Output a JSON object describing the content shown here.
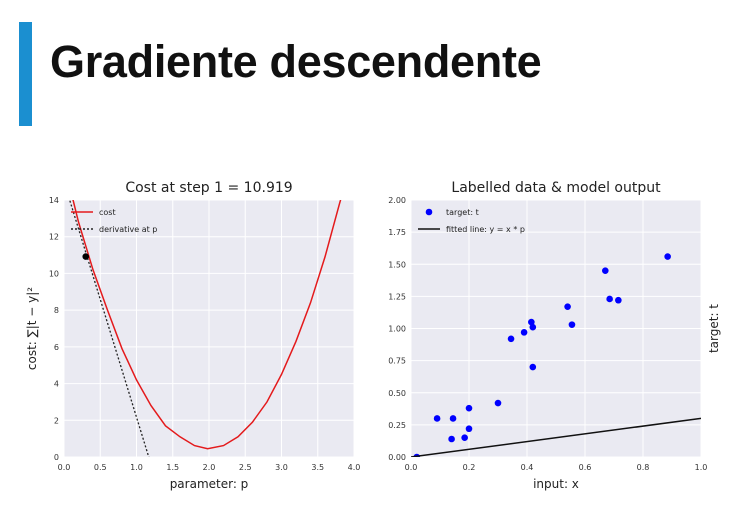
{
  "slide": {
    "title": "Gradiente descendente",
    "accent_color": "#1b8fd0"
  },
  "chart_data": [
    {
      "type": "line",
      "title": "Cost at step 1 = 10.919",
      "xlabel": "parameter: p",
      "ylabel": "cost: ∑|t − y|²",
      "xlim": [
        0.0,
        4.0
      ],
      "ylim": [
        0,
        14
      ],
      "xticks": [
        "0.0",
        "0.5",
        "1.0",
        "1.5",
        "2.0",
        "2.5",
        "3.0",
        "3.5",
        "4.0"
      ],
      "yticks": [
        "0",
        "2",
        "4",
        "6",
        "8",
        "10",
        "12",
        "14"
      ],
      "grid": true,
      "background": "#eaeaf2",
      "legend": {
        "location": "top-left",
        "entries": [
          {
            "label": "cost",
            "style": "solid",
            "color": "#e41a1c"
          },
          {
            "label": "derivative at p",
            "style": "dotted",
            "color": "#222222"
          }
        ]
      },
      "series": [
        {
          "name": "cost",
          "style": "solid",
          "color": "#e41a1c",
          "x": [
            0.0,
            0.2,
            0.4,
            0.6,
            0.8,
            1.0,
            1.2,
            1.4,
            1.6,
            1.8,
            1.98,
            2.2,
            2.4,
            2.6,
            2.8,
            3.0,
            3.2,
            3.4,
            3.6,
            3.8,
            3.9
          ],
          "y": [
            16.0,
            12.8,
            10.2,
            8.0,
            5.9,
            4.2,
            2.8,
            1.7,
            1.1,
            0.62,
            0.45,
            0.62,
            1.1,
            1.9,
            3.0,
            4.5,
            6.3,
            8.4,
            10.9,
            13.8,
            15.2
          ]
        },
        {
          "name": "derivative at p",
          "style": "dotted",
          "color": "#222222",
          "x": [
            0.0,
            1.2
          ],
          "y": [
            15.0,
            -0.4
          ]
        }
      ],
      "points": [
        {
          "x": 0.3,
          "y": 10.919,
          "color": "#000000"
        }
      ]
    },
    {
      "type": "scatter",
      "title": "Labelled data & model output",
      "xlabel": "input: x",
      "ylabel": "target: t",
      "xlim": [
        0.0,
        1.0
      ],
      "ylim": [
        0.0,
        2.0
      ],
      "xticks": [
        "0.0",
        "0.2",
        "0.4",
        "0.6",
        "0.8",
        "1.0"
      ],
      "yticks": [
        "0.00",
        "0.25",
        "0.50",
        "0.75",
        "1.00",
        "1.25",
        "1.50",
        "1.75",
        "2.00"
      ],
      "grid": true,
      "background": "#eaeaf2",
      "legend": {
        "location": "top-left",
        "entries": [
          {
            "label": "target: t",
            "style": "marker",
            "color": "#0000ff"
          },
          {
            "label": "fitted line: y = x * p",
            "style": "solid",
            "color": "#111111"
          }
        ]
      },
      "series": [
        {
          "name": "target: t",
          "style": "marker",
          "color": "#0000ff",
          "x": [
            0.02,
            0.09,
            0.14,
            0.145,
            0.185,
            0.2,
            0.2,
            0.3,
            0.345,
            0.39,
            0.415,
            0.42,
            0.42,
            0.54,
            0.555,
            0.67,
            0.685,
            0.715,
            0.885
          ],
          "y": [
            0.0,
            0.3,
            0.14,
            0.3,
            0.15,
            0.22,
            0.38,
            0.42,
            0.92,
            0.97,
            1.05,
            1.01,
            0.7,
            1.17,
            1.03,
            1.45,
            1.23,
            1.22,
            1.56
          ]
        },
        {
          "name": "fitted line: y = x * p",
          "style": "solid",
          "color": "#111111",
          "x": [
            0.0,
            1.0
          ],
          "y": [
            0.0,
            0.3
          ]
        }
      ]
    }
  ]
}
